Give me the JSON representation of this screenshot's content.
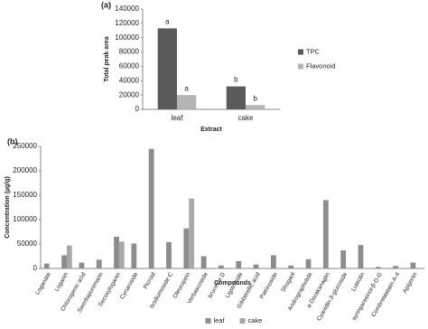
{
  "chart_data": [
    {
      "type": "bar",
      "panel_label": "(a)",
      "x_label": "Extract",
      "y_label": "Total peak area",
      "categories": [
        "leaf",
        "cake"
      ],
      "series": [
        {
          "name": "TPC",
          "color": "#5a5a5a",
          "values": [
            113000,
            32000
          ],
          "letters": [
            "a",
            "b"
          ]
        },
        {
          "name": "Flavonoid",
          "color": "#b4b4b4",
          "values": [
            20000,
            6000
          ],
          "letters": [
            "a",
            "b"
          ]
        }
      ],
      "ylim": [
        0,
        140000
      ],
      "yticks": [
        0,
        20000,
        40000,
        60000,
        80000,
        100000,
        120000,
        140000
      ],
      "legend": "right"
    },
    {
      "type": "bar",
      "panel_label": "(b)",
      "x_label": "Compounds",
      "y_label": "Concentration (µg/g)",
      "categories": [
        "Loganate",
        "Loganin",
        "Chlorogenic acid",
        "Swertiapunimarin",
        "Secoxyloganin",
        "Cynaroside",
        "Picroid",
        "Isodiumoside C",
        "Oleuropein",
        "Verbascoside",
        "bruceine D",
        "Ligstroside",
        "Gibberellic acid",
        "Patrinoside",
        "Shogaol",
        "Andrographolide",
        "α-Dorakanaglin",
        "Cyanidin-3-glucoside",
        "Luteolin",
        "syringaresinol-β-D-G",
        "Combretastatin A-4",
        "Apigenin"
      ],
      "series": [
        {
          "name": "leaf",
          "color": "#8c8c8c",
          "values": [
            10000,
            27000,
            12000,
            18000,
            65000,
            51000,
            245000,
            54000,
            82000,
            25000,
            6000,
            15000,
            8000,
            27000,
            6000,
            19000,
            140000,
            37000,
            48000,
            3000,
            5000,
            12000
          ]
        },
        {
          "name": "cake",
          "color": "#a8a8a8",
          "values": [
            null,
            47000,
            null,
            null,
            55000,
            null,
            null,
            null,
            143000,
            null,
            null,
            null,
            null,
            null,
            null,
            null,
            null,
            null,
            null,
            null,
            null,
            null
          ]
        }
      ],
      "ylim": [
        0,
        250000
      ],
      "yticks": [
        0,
        50000,
        100000,
        150000,
        200000,
        250000
      ],
      "legend": "bottom"
    }
  ]
}
